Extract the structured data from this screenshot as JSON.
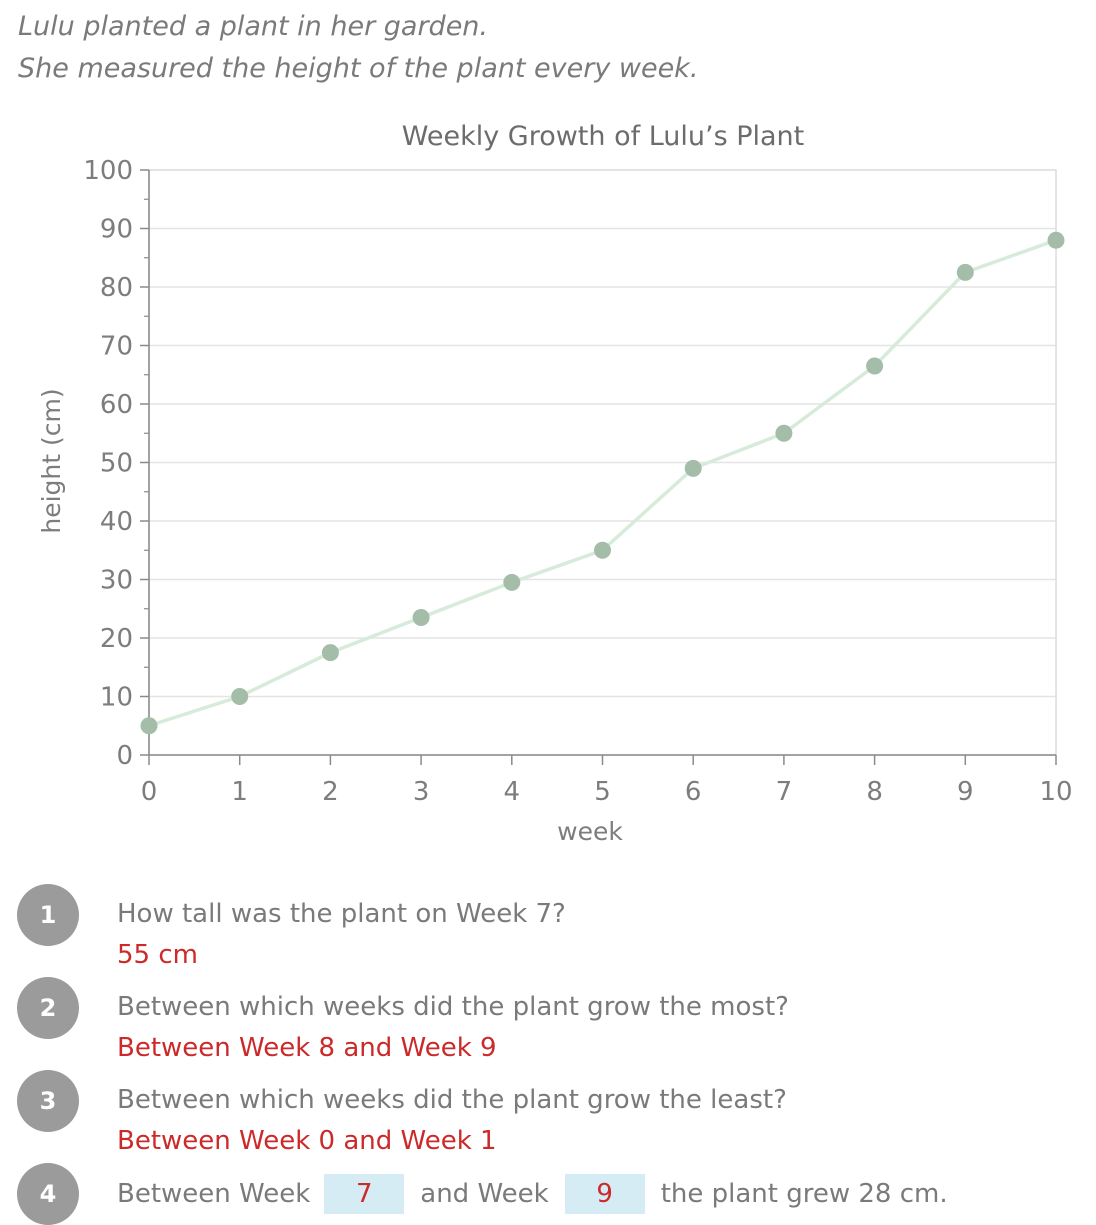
{
  "intro": {
    "line1": "Lulu planted a plant in her garden.",
    "line2": "She measured the height of the plant every week."
  },
  "chart_data": {
    "type": "line",
    "title": "Weekly Growth of Lulu’s Plant",
    "xlabel": "week",
    "ylabel": "height (cm)",
    "x": [
      0,
      1,
      2,
      3,
      4,
      5,
      6,
      7,
      8,
      9,
      10
    ],
    "values": [
      5,
      10,
      17.5,
      23.5,
      29.5,
      35,
      49,
      55,
      66.5,
      82.5,
      88
    ],
    "xlim": [
      0,
      10
    ],
    "ylim": [
      0,
      100
    ],
    "x_ticks": [
      "0",
      "1",
      "2",
      "3",
      "4",
      "5",
      "6",
      "7",
      "8",
      "9",
      "10"
    ],
    "y_ticks": [
      "0",
      "10",
      "20",
      "30",
      "40",
      "50",
      "60",
      "70",
      "80",
      "90",
      "100"
    ],
    "grid": true,
    "line_color": "#d6ebd9",
    "marker_color": "#a4bda8"
  },
  "questions": [
    {
      "number": "1",
      "question": "How tall was the plant on Week 7?",
      "answer": "55 cm"
    },
    {
      "number": "2",
      "question": "Between which weeks did the plant grow the most?",
      "answer": "Between Week 8 and Week 9"
    },
    {
      "number": "3",
      "question": "Between which weeks did the plant grow the least?",
      "answer": "Between Week 0 and Week 1"
    },
    {
      "number": "4",
      "part1": "Between Week",
      "blank1": "7",
      "part2": "and Week",
      "blank2": "9",
      "part3": "the plant grew 28 cm."
    }
  ],
  "colors": {
    "answer": "#cc2a2a",
    "badge": "#9b9b9b",
    "blank_fill": "#d6ecf5"
  }
}
